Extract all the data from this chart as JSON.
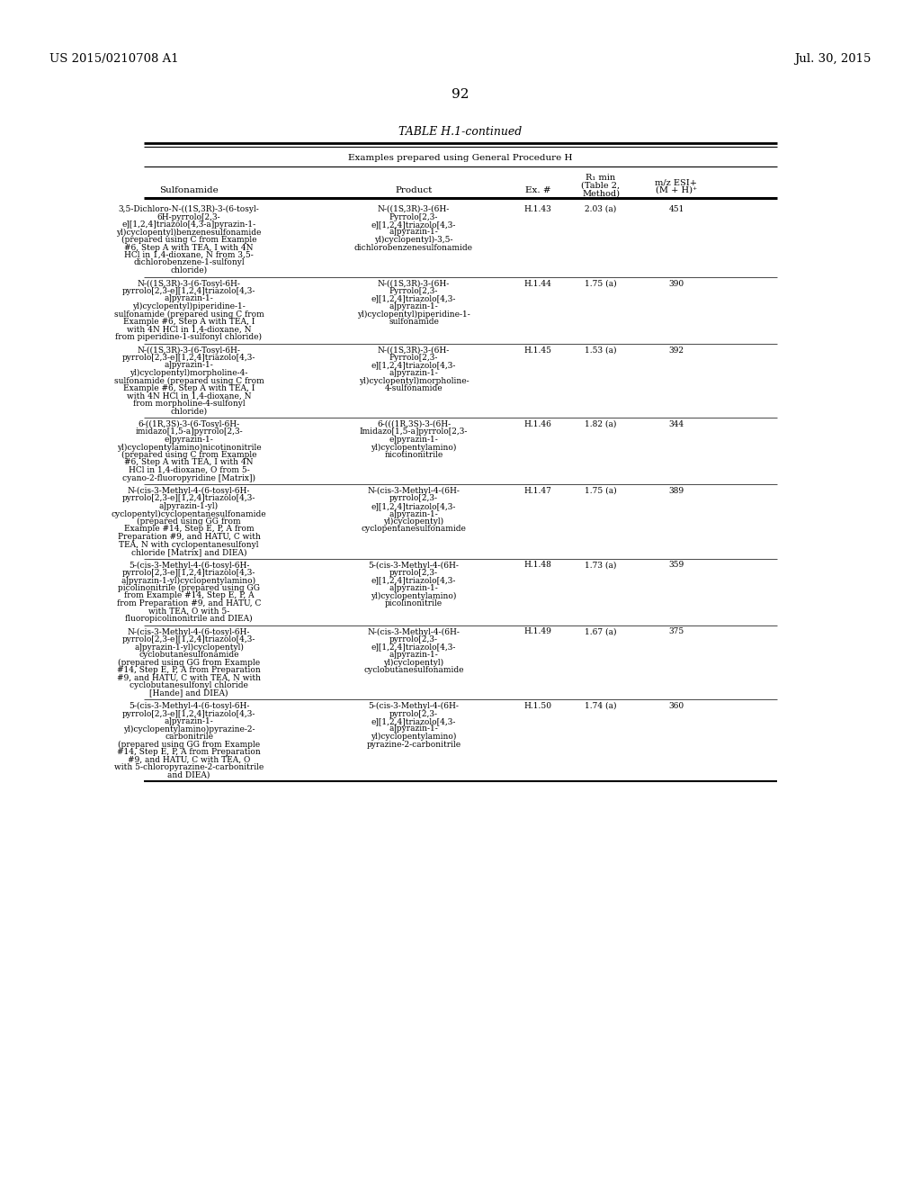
{
  "page_header_left": "US 2015/0210708 A1",
  "page_header_right": "Jul. 30, 2015",
  "page_number": "92",
  "table_title": "TABLE H.1-continued",
  "table_subtitle": "Examples prepared using General Procedure H",
  "rows": [
    {
      "sulfonamide": [
        "3,5-Dichloro-N-((1S,3R)-3-(6-tosyl-",
        "6H-pyrrolo[2,3-",
        "e][1,2,4]triazolo[4,3-a]pyrazin-1-",
        "yl)cyclopentyl)benzenesulfonamide",
        "(prepared using C from Example",
        "#6, Step A with TEA, I with 4N",
        "HCl in 1,4-dioxane, N from 3,5-",
        "dichlorobenzene-1-sulfonyl",
        "chloride)"
      ],
      "product": [
        "N-((1S,3R)-3-(6H-",
        "Pyrrolo[2,3-",
        "e][1,2,4]triazolo[4,3-",
        "a]pyrazin-1-",
        "yl)cyclopentyl)-3,5-",
        "dichlorobenzenesulfonamide"
      ],
      "ex": "H.1.43",
      "rt": "2.03 (a)",
      "mz": "451"
    },
    {
      "sulfonamide": [
        "N-((1S,3R)-3-(6-Tosyl-6H-",
        "pyrrolo[2,3-e][1,2,4]triazolo[4,3-",
        "a]pyrazin-1-",
        "yl)cyclopentyl)piperidine-1-",
        "sulfonamide (prepared using C from",
        "Example #6, Step A with TEA, I",
        "with 4N HCl in 1,4-dioxane, N",
        "from piperidine-1-sulfonyl chloride)"
      ],
      "product": [
        "N-((1S,3R)-3-(6H-",
        "Pyrrolo[2,3-",
        "e][1,2,4]triazolo[4,3-",
        "a]pyrazin-1-",
        "yl)cyclopentyl)piperidine-1-",
        "sulfonamide"
      ],
      "ex": "H.1.44",
      "rt": "1.75 (a)",
      "mz": "390"
    },
    {
      "sulfonamide": [
        "N-((1S,3R)-3-(6-Tosyl-6H-",
        "pyrrolo[2,3-e][1,2,4]triazolo[4,3-",
        "a]pyrazin-1-",
        "yl)cyclopentyl)morpholine-4-",
        "sulfonamide (prepared using C from",
        "Example #6, Step A with TEA, I",
        "with 4N HCl in 1,4-dioxane, N",
        "from morpholine-4-sulfonyl",
        "chloride)"
      ],
      "product": [
        "N-((1S,3R)-3-(6H-",
        "Pyrrolo[2,3-",
        "e][1,2,4]triazolo[4,3-",
        "a]pyrazin-1-",
        "yl)cyclopentyl)morpholine-",
        "4-sulfonamide"
      ],
      "ex": "H.1.45",
      "rt": "1.53 (a)",
      "mz": "392"
    },
    {
      "sulfonamide": [
        "6-((1R,3S)-3-(6-Tosyl-6H-",
        "imidazo[1,5-a]pyrrolo[2,3-",
        "e]pyrazin-1-",
        "yl)cyclopentylamino)nicotinonitrile",
        "(prepared using C from Example",
        "#6, Step A with TEA, I with 4N",
        "HCl in 1,4-dioxane, O from 5-",
        "cyano-2-fluoropyridine [Matrix])"
      ],
      "product": [
        "6-(((1R,3S)-3-(6H-",
        "Imidazo[1,5-a]pyrrolo[2,3-",
        "e]pyrazin-1-",
        "yl)cyclopentylamino)",
        "nicotinonitrile"
      ],
      "ex": "H.1.46",
      "rt": "1.82 (a)",
      "mz": "344"
    },
    {
      "sulfonamide": [
        "N-(cis-3-Methyl-4-(6-tosyl-6H-",
        "pyrrolo[2,3-e][1,2,4]triazolo[4,3-",
        "a]pyrazin-1-yl)",
        "cyclopentyl)cyclopentanesulfonamide",
        "(prepared using GG from",
        "Example #14, Step E, P, A from",
        "Preparation #9, and HATU, C with",
        "TEA, N with cyclopentanesulfonyl",
        "chloride [Matrix] and DIEA)"
      ],
      "product": [
        "N-(cis-3-Methyl-4-(6H-",
        "pyrrolo[2,3-",
        "e][1,2,4]triazolo[4,3-",
        "a]pyrazin-1-",
        "yl)cyclopentyl)",
        "cyclopentanesulfonamide"
      ],
      "ex": "H.1.47",
      "rt": "1.75 (a)",
      "mz": "389"
    },
    {
      "sulfonamide": [
        "5-(cis-3-Methyl-4-(6-tosyl-6H-",
        "pyrrolo[2,3-e][1,2,4]triazolo[4,3-",
        "a]pyrazin-1-yl)cyclopentylamino)",
        "picolinonitrile (prepared using GG",
        "from Example #14, Step E, P, A",
        "from Preparation #9, and HATU, C",
        "with TEA, O with 5-",
        "fluoropicolinonitrile and DIEA)"
      ],
      "product": [
        "5-(cis-3-Methyl-4-(6H-",
        "pyrrolo[2,3-",
        "e][1,2,4]triazolo[4,3-",
        "a]pyrazin-1-",
        "yl)cyclopentylamino)",
        "picolinonitrile"
      ],
      "ex": "H.1.48",
      "rt": "1.73 (a)",
      "mz": "359"
    },
    {
      "sulfonamide": [
        "N-(cis-3-Methyl-4-(6-tosyl-6H-",
        "pyrrolo[2,3-e][1,2,4]triazolo[4,3-",
        "a]pyrazin-1-yl)cyclopentyl)",
        "cyclobutanesulfonamide",
        "(prepared using GG from Example",
        "#14, Step E, P, A from Preparation",
        "#9, and HATU, C with TEA, N with",
        "cyclobutanesulfonyl chloride",
        "[Hande] and DIEA)"
      ],
      "product": [
        "N-(cis-3-Methyl-4-(6H-",
        "pyrrolo[2,3-",
        "e][1,2,4]triazolo[4,3-",
        "a]pyrazin-1-",
        "yl)cyclopentyl)",
        "cyclobutanesulfonamide"
      ],
      "ex": "H.1.49",
      "rt": "1.67 (a)",
      "mz": "375"
    },
    {
      "sulfonamide": [
        "5-(cis-3-Methyl-4-(6-tosyl-6H-",
        "pyrrolo[2,3-e][1,2,4]triazolo[4,3-",
        "a]pyrazin-1-",
        "yl)cyclopentylamino)pyrazine-2-",
        "carbonitrile",
        "(prepared using GG from Example",
        "#14, Step E, P, A from Preparation",
        "#9, and HATU, C with TEA, O",
        "with 5-chloropyrazine-2-carbonitrile",
        "and DIEA)"
      ],
      "product": [
        "5-(cis-3-Methyl-4-(6H-",
        "pyrrolo[2,3-",
        "e][1,2,4]triazolo[4,3-",
        "a]pyrazin-1-",
        "yl)cyclopentylamino)",
        "pyrazine-2-carbonitrile"
      ],
      "ex": "H.1.50",
      "rt": "1.74 (a)",
      "mz": "360"
    }
  ],
  "background_color": "#ffffff",
  "text_color": "#000000"
}
